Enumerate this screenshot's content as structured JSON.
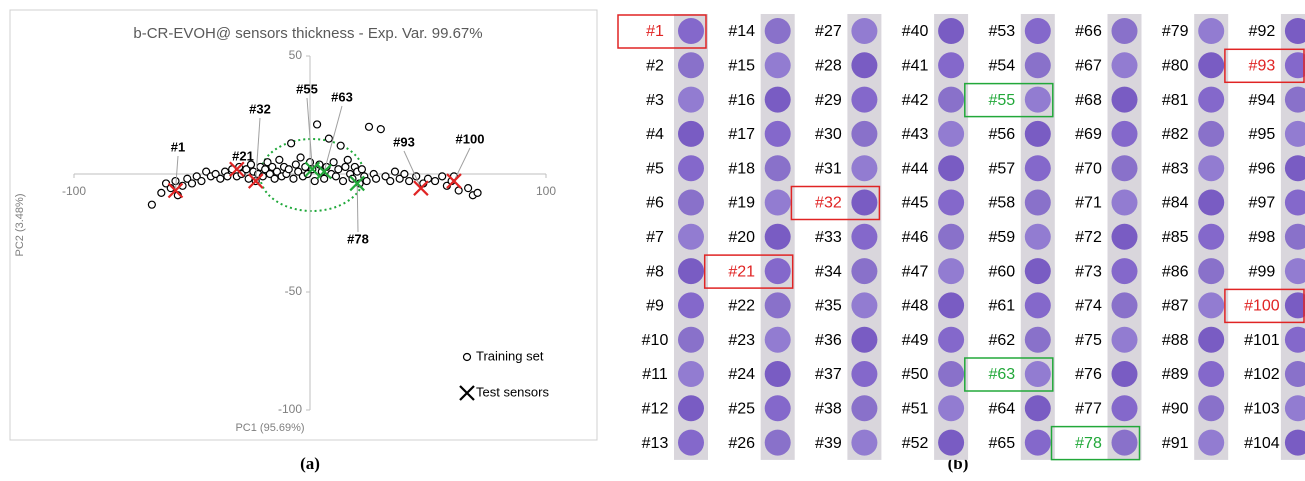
{
  "chart_data": {
    "type": "scatter",
    "title": "b-CR-EVOH@ sensors thickness - Exp. Var. 99.67%",
    "x_label": "PC1 (95.69%)",
    "y_label": "PC2 (3.48%)",
    "xlim": [
      -100,
      100
    ],
    "ylim": [
      -100,
      50
    ],
    "xticks": [
      -100,
      100
    ],
    "yticks": [
      -100,
      -50,
      50
    ],
    "series": [
      {
        "name": "Training set",
        "marker": "circle",
        "color": "#000000",
        "x": [
          -67,
          -63,
          -61,
          -59,
          -57,
          -56,
          -54,
          -52,
          -50,
          -48,
          -46,
          -44,
          -42,
          -40,
          -38,
          -36,
          -35,
          -33,
          -31,
          -30,
          -29,
          -27,
          -26,
          -25,
          -24,
          -23,
          -22,
          -21,
          -20,
          -19,
          -18,
          -17,
          -16,
          -15,
          -14,
          -13,
          -12,
          -11,
          -10,
          -9,
          -8,
          -7,
          -6,
          -5,
          -4,
          -3,
          -2,
          -1,
          0,
          1,
          2,
          3,
          4,
          5,
          6,
          7,
          8,
          9,
          10,
          11,
          12,
          13,
          14,
          15,
          16,
          17,
          18,
          19,
          20,
          21,
          22,
          23,
          24,
          25,
          27,
          28,
          30,
          32,
          34,
          36,
          38,
          40,
          42,
          45,
          48,
          50,
          53,
          56,
          58,
          60,
          63,
          67,
          69,
          71,
          61
        ],
        "values": [
          -13,
          -8,
          -4,
          -6,
          -3,
          -9,
          -5,
          -2,
          -4,
          -1,
          -3,
          1,
          -1,
          0,
          -2,
          1,
          -1,
          2,
          -1,
          3,
          0,
          2,
          -2,
          4,
          1,
          -3,
          0,
          3,
          -1,
          2,
          5,
          0,
          3,
          -2,
          1,
          6,
          -1,
          3,
          0,
          2,
          13,
          -2,
          4,
          1,
          7,
          -1,
          3,
          0,
          5,
          2,
          -3,
          21,
          4,
          1,
          -2,
          3,
          15,
          0,
          5,
          -1,
          2,
          12,
          -3,
          3,
          6,
          0,
          -2,
          3,
          1,
          -4,
          2,
          -1,
          -3,
          20,
          0,
          -2,
          19,
          -1,
          -3,
          1,
          -2,
          0,
          -3,
          -1,
          -4,
          -2,
          -3,
          -1,
          -5,
          -3,
          -7,
          -6,
          -9,
          -8,
          -1
        ]
      },
      {
        "name": "Test sensors",
        "marker": "x",
        "color": "#000000",
        "x": [
          -57,
          -31,
          -23,
          1,
          6,
          20,
          47,
          61
        ],
        "values": [
          -7,
          2,
          -3,
          2,
          1,
          -4,
          -6,
          -3
        ],
        "labels": [
          "#1",
          "#21",
          "#32",
          "#55",
          "#63",
          "#78",
          "#93",
          "#100"
        ],
        "point_colors": [
          "#e02424",
          "#e02424",
          "#e02424",
          "#22a83a",
          "#22a83a",
          "#22a83a",
          "#e02424",
          "#e02424"
        ]
      }
    ]
  },
  "panel_b": {
    "samples": [
      {
        "label": "#1",
        "color": "#e02424"
      },
      {
        "label": "#2"
      },
      {
        "label": "#3"
      },
      {
        "label": "#4"
      },
      {
        "label": "#5"
      },
      {
        "label": "#6"
      },
      {
        "label": "#7"
      },
      {
        "label": "#8"
      },
      {
        "label": "#9"
      },
      {
        "label": "#10"
      },
      {
        "label": "#11"
      },
      {
        "label": "#12"
      },
      {
        "label": "#13"
      },
      {
        "label": "#14"
      },
      {
        "label": "#15"
      },
      {
        "label": "#16"
      },
      {
        "label": "#17"
      },
      {
        "label": "#18"
      },
      {
        "label": "#19"
      },
      {
        "label": "#20"
      },
      {
        "label": "#21",
        "color": "#e02424"
      },
      {
        "label": "#22"
      },
      {
        "label": "#23"
      },
      {
        "label": "#24"
      },
      {
        "label": "#25"
      },
      {
        "label": "#26"
      },
      {
        "label": "#27"
      },
      {
        "label": "#28"
      },
      {
        "label": "#29"
      },
      {
        "label": "#30"
      },
      {
        "label": "#31"
      },
      {
        "label": "#32",
        "color": "#e02424"
      },
      {
        "label": "#33"
      },
      {
        "label": "#34"
      },
      {
        "label": "#35"
      },
      {
        "label": "#36"
      },
      {
        "label": "#37"
      },
      {
        "label": "#38"
      },
      {
        "label": "#39"
      },
      {
        "label": "#40"
      },
      {
        "label": "#41"
      },
      {
        "label": "#42"
      },
      {
        "label": "#43"
      },
      {
        "label": "#44"
      },
      {
        "label": "#45"
      },
      {
        "label": "#46"
      },
      {
        "label": "#47"
      },
      {
        "label": "#48"
      },
      {
        "label": "#49"
      },
      {
        "label": "#50"
      },
      {
        "label": "#51"
      },
      {
        "label": "#52"
      },
      {
        "label": "#53"
      },
      {
        "label": "#54"
      },
      {
        "label": "#55",
        "color": "#22a83a"
      },
      {
        "label": "#56"
      },
      {
        "label": "#57"
      },
      {
        "label": "#58"
      },
      {
        "label": "#59"
      },
      {
        "label": "#60"
      },
      {
        "label": "#61"
      },
      {
        "label": "#62"
      },
      {
        "label": "#63",
        "color": "#22a83a"
      },
      {
        "label": "#64"
      },
      {
        "label": "#65"
      },
      {
        "label": "#66"
      },
      {
        "label": "#67"
      },
      {
        "label": "#68"
      },
      {
        "label": "#69"
      },
      {
        "label": "#70"
      },
      {
        "label": "#71"
      },
      {
        "label": "#72"
      },
      {
        "label": "#73"
      },
      {
        "label": "#74"
      },
      {
        "label": "#75"
      },
      {
        "label": "#76"
      },
      {
        "label": "#77"
      },
      {
        "label": "#78",
        "color": "#22a83a"
      },
      {
        "label": "#79"
      },
      {
        "label": "#80"
      },
      {
        "label": "#81"
      },
      {
        "label": "#82"
      },
      {
        "label": "#83"
      },
      {
        "label": "#84"
      },
      {
        "label": "#85"
      },
      {
        "label": "#86"
      },
      {
        "label": "#87"
      },
      {
        "label": "#88"
      },
      {
        "label": "#89"
      },
      {
        "label": "#90"
      },
      {
        "label": "#91"
      },
      {
        "label": "#92"
      },
      {
        "label": "#93",
        "color": "#e02424"
      },
      {
        "label": "#94"
      },
      {
        "label": "#95"
      },
      {
        "label": "#96"
      },
      {
        "label": "#97"
      },
      {
        "label": "#98"
      },
      {
        "label": "#99"
      },
      {
        "label": "#100",
        "color": "#e02424"
      },
      {
        "label": "#101"
      },
      {
        "label": "#102"
      },
      {
        "label": "#103"
      },
      {
        "label": "#104"
      }
    ]
  },
  "captions": [
    "(a)",
    "(b)"
  ]
}
